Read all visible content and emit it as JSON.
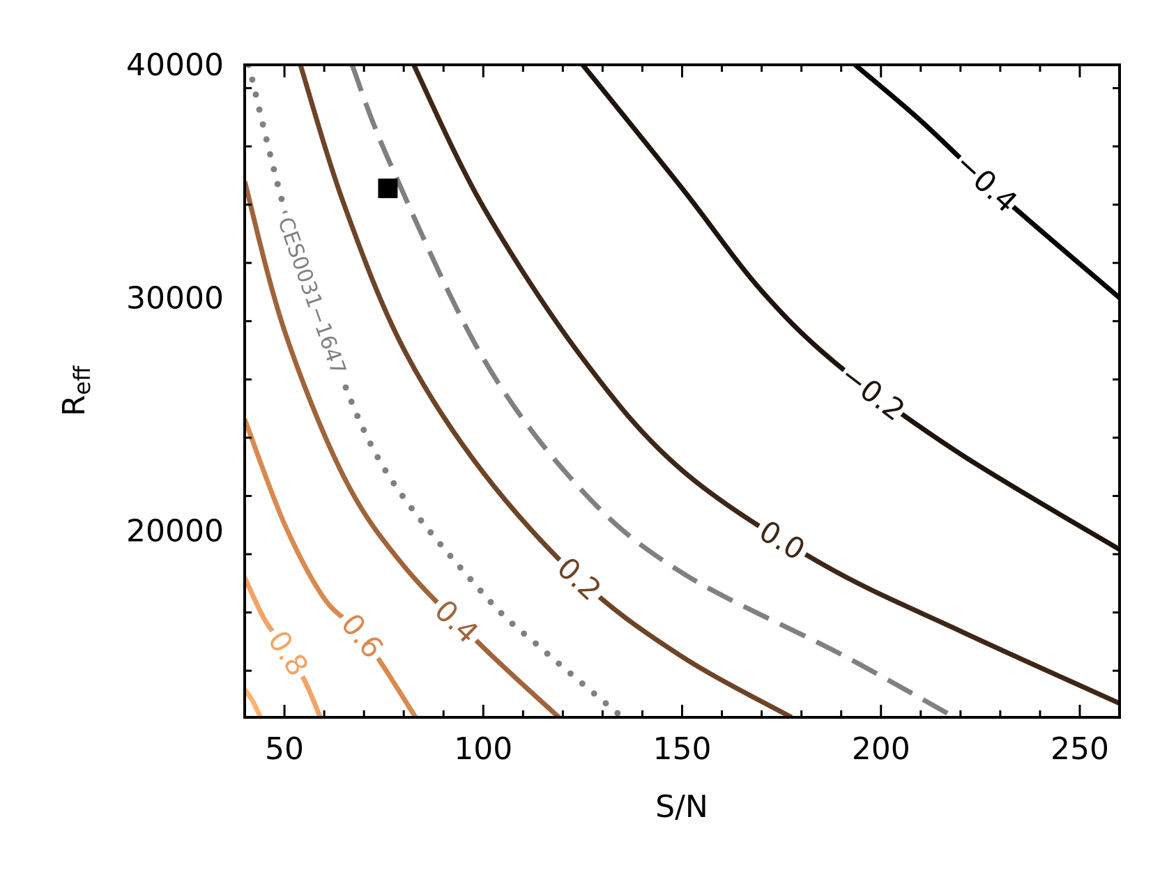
{
  "chart_data": {
    "type": "contour",
    "xlabel": "S/N",
    "ylabel": {
      "main": "R",
      "sub": "eff"
    },
    "xlim": [
      40,
      260
    ],
    "ylim": [
      12000,
      40000
    ],
    "xticks": [
      50,
      100,
      150,
      200,
      250
    ],
    "xtick_labels": [
      "50",
      "100",
      "150",
      "200",
      "250"
    ],
    "yticks": [
      20000,
      30000,
      40000
    ],
    "ytick_labels": [
      "20000",
      "30000",
      "40000"
    ],
    "grid": false,
    "contours": [
      {
        "level_label": "−0.4",
        "color": "#000000",
        "style": "solid",
        "points": [
          [
            193.5,
            40000
          ],
          [
            210,
            37600
          ],
          [
            230,
            34400
          ],
          [
            260,
            30000
          ]
        ]
      },
      {
        "level_label": "−0.2",
        "color": "#1f140d",
        "style": "solid",
        "points": [
          [
            125,
            40000
          ],
          [
            150,
            34700
          ],
          [
            170,
            30300
          ],
          [
            190,
            27000
          ],
          [
            220,
            23300
          ],
          [
            260,
            19200
          ]
        ]
      },
      {
        "level_label": "0.0",
        "color": "#3e2716",
        "style": "solid",
        "points": [
          [
            82.5,
            40000
          ],
          [
            100,
            33900
          ],
          [
            125,
            27400
          ],
          [
            150,
            22600
          ],
          [
            185,
            18600
          ],
          [
            220,
            15700
          ],
          [
            260,
            12600
          ]
        ]
      },
      {
        "level_label": "",
        "color": "#808080",
        "style": "dashed",
        "points": [
          [
            67,
            40000
          ],
          [
            76.5,
            35800
          ],
          [
            100,
            27400
          ],
          [
            125,
            21700
          ],
          [
            150,
            18200
          ],
          [
            190,
            14700
          ],
          [
            218.5,
            12000
          ]
        ]
      },
      {
        "level_label": "0.2",
        "color": "#6d4427",
        "style": "solid",
        "points": [
          [
            54,
            40000
          ],
          [
            65,
            34000
          ],
          [
            80,
            27800
          ],
          [
            100,
            22500
          ],
          [
            125,
            17800
          ],
          [
            150,
            14600
          ],
          [
            177.5,
            12000
          ]
        ]
      },
      {
        "level_label": "",
        "color": "#808080",
        "style": "dotted",
        "points": [
          [
            41,
            40000
          ],
          [
            50,
            33800
          ],
          [
            60,
            28600
          ],
          [
            75,
            22700
          ],
          [
            100,
            17300
          ],
          [
            115,
            14900
          ],
          [
            135,
            12000
          ]
        ]
      },
      {
        "level_label": "0.4",
        "color": "#a0643a",
        "style": "solid",
        "points": [
          [
            40,
            35000
          ],
          [
            50,
            28600
          ],
          [
            65,
            22300
          ],
          [
            80,
            18500
          ],
          [
            100,
            15000
          ],
          [
            119,
            12000
          ]
        ]
      },
      {
        "level_label": "0.6",
        "color": "#d98a50",
        "style": "solid",
        "points": [
          [
            40,
            24800
          ],
          [
            50,
            20300
          ],
          [
            60,
            17100
          ],
          [
            70,
            15400
          ],
          [
            83,
            12000
          ]
        ]
      },
      {
        "level_label": "0.8",
        "color": "#f2a466",
        "style": "solid",
        "points": [
          [
            40,
            18000
          ],
          [
            45,
            16200
          ],
          [
            50,
            15000
          ],
          [
            55,
            13600
          ],
          [
            59,
            12000
          ]
        ]
      },
      {
        "level_label": "",
        "color": "#ffb473",
        "style": "solid",
        "points": [
          [
            40,
            13200
          ],
          [
            42,
            12700
          ],
          [
            44,
            12000
          ]
        ]
      }
    ],
    "contour_annotation": {
      "text": "CES0031−1647",
      "color": "#808080"
    },
    "marker": {
      "x": 76,
      "y": 34700,
      "shape": "square",
      "color": "#000000"
    }
  }
}
